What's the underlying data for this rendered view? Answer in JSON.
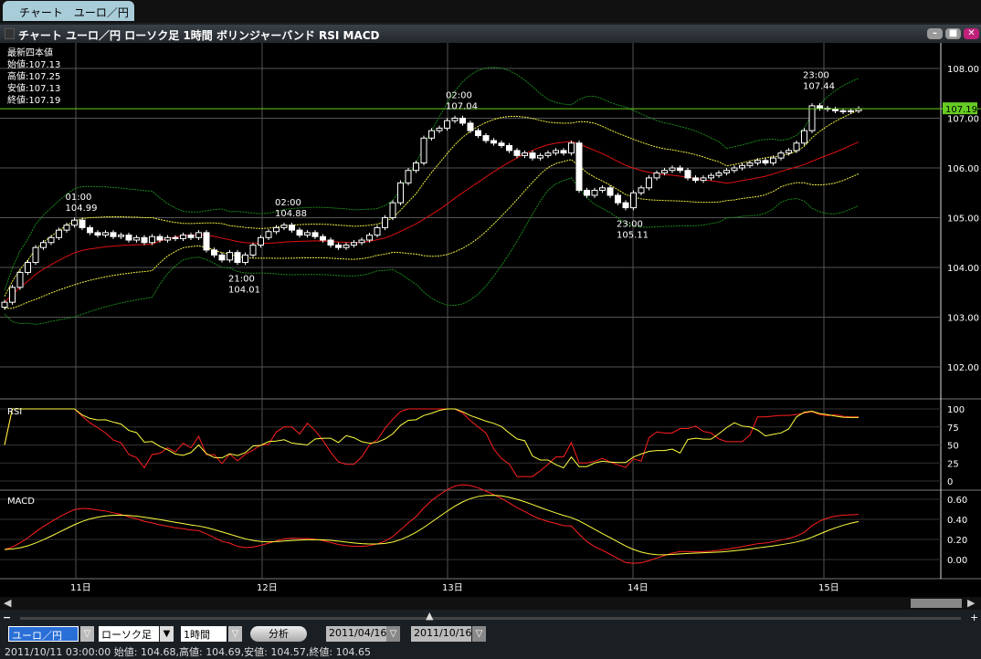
{
  "tab": {
    "label": "チャート　ユーロ／円"
  },
  "window": {
    "title": "チャート ユーロ／円 ローソク足 1時間 ボリンジャーバンド RSI MACD",
    "buttons": [
      "minimize",
      "maximize",
      "close"
    ]
  },
  "ohlc_box": {
    "heading": "最新四本値",
    "open": "始値:107.13",
    "high": "高値:107.25",
    "low": "安値:107.13",
    "close": "終値:107.19"
  },
  "colors": {
    "background": "#000000",
    "grid": "#555555",
    "candle": "#ffffff",
    "bb_mid": "#e01010",
    "bb_1": "#f0f040",
    "bb_2": "#1a8a1a",
    "rsi_fast": "#ff2020",
    "rsi_slow": "#ffff40",
    "current_price": "#66cc22"
  },
  "chart_data": {
    "type": "candlestick",
    "interval": "1時間",
    "x_ticks": [
      "11日",
      "12日",
      "13日",
      "14日",
      "15日"
    ],
    "price_axis": {
      "ticks": [
        "108.00",
        "107.00",
        "106.00",
        "105.00",
        "104.00",
        "103.00",
        "102.00"
      ],
      "range": [
        101.5,
        108.5
      ]
    },
    "current_price": "107.19",
    "closes": [
      103.3,
      103.6,
      103.9,
      104.1,
      104.4,
      104.5,
      104.6,
      104.75,
      104.85,
      104.95,
      104.8,
      104.7,
      104.65,
      104.7,
      104.62,
      104.65,
      104.55,
      104.6,
      104.5,
      104.62,
      104.55,
      104.6,
      104.58,
      104.65,
      104.6,
      104.7,
      104.35,
      104.25,
      104.15,
      104.3,
      104.1,
      104.25,
      104.45,
      104.6,
      104.72,
      104.8,
      104.85,
      104.75,
      104.65,
      104.7,
      104.62,
      104.55,
      104.45,
      104.4,
      104.45,
      104.5,
      104.55,
      104.65,
      104.8,
      105.0,
      105.3,
      105.7,
      105.95,
      106.1,
      106.6,
      106.75,
      106.8,
      106.95,
      107.0,
      106.9,
      106.75,
      106.65,
      106.55,
      106.5,
      106.45,
      106.35,
      106.25,
      106.3,
      106.2,
      106.25,
      106.3,
      106.35,
      106.3,
      106.5,
      105.55,
      105.45,
      105.55,
      105.6,
      105.45,
      105.3,
      105.2,
      105.5,
      105.6,
      105.8,
      105.9,
      105.95,
      106.0,
      105.95,
      105.8,
      105.75,
      105.8,
      105.85,
      105.9,
      105.95,
      106.0,
      106.05,
      106.1,
      106.15,
      106.1,
      106.2,
      106.3,
      106.35,
      106.5,
      106.75,
      107.25,
      107.2,
      107.18,
      107.15,
      107.13,
      107.15,
      107.19
    ],
    "annotations": [
      {
        "time": "01:00",
        "price": "104.99",
        "index": 9,
        "pos": "above"
      },
      {
        "time": "21:00",
        "price": "104.01",
        "index": 30,
        "pos": "below"
      },
      {
        "time": "02:00",
        "price": "104.88",
        "index": 36,
        "pos": "above"
      },
      {
        "time": "02:00",
        "price": "107.04",
        "index": 58,
        "pos": "above"
      },
      {
        "time": "23:00",
        "price": "105.11",
        "index": 80,
        "pos": "below"
      },
      {
        "time": "23:00",
        "price": "107.44",
        "index": 104,
        "pos": "above"
      }
    ],
    "indicators": {
      "bollinger": "ボリンジャーバンド",
      "rsi": {
        "label": "RSI",
        "ticks": [
          "100",
          "75",
          "50",
          "25",
          "0"
        ]
      },
      "macd": {
        "label": "MACD",
        "ticks": [
          "0.60",
          "0.40",
          "0.20",
          "0.00"
        ]
      }
    }
  },
  "controls": {
    "pair": "ユーロ／円",
    "chart_type": "ローソク足",
    "interval": "1時間",
    "analyze_button": "分析",
    "from_date": "2011/04/16",
    "to_date": "2011/10/16"
  },
  "status": "2011/10/11 03:00:00 始値: 104.68,高値: 104.69,安値: 104.57,終値: 104.65"
}
